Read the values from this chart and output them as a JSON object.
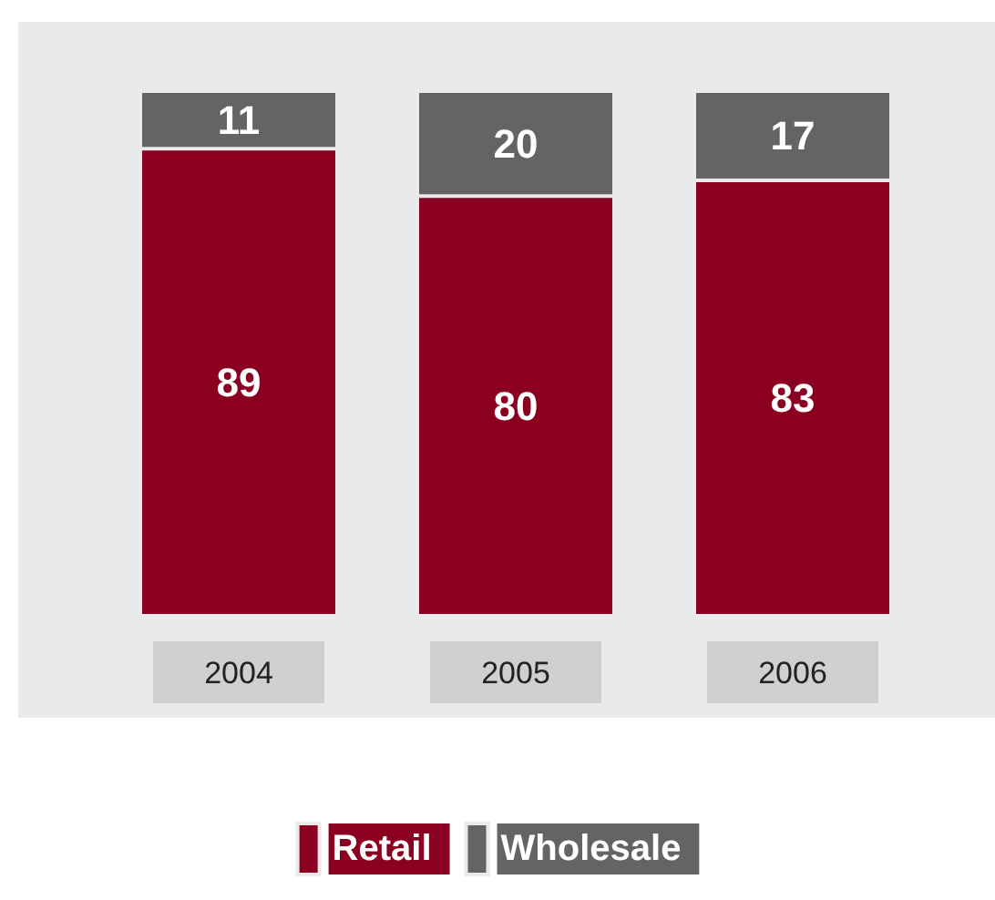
{
  "chart_data": {
    "type": "bar",
    "stacked": true,
    "categories": [
      "2004",
      "2005",
      "2006"
    ],
    "series": [
      {
        "name": "Retail",
        "color": "#8b0021",
        "values": [
          89,
          80,
          83
        ]
      },
      {
        "name": "Wholesale",
        "color": "#636466",
        "values": [
          11,
          20,
          17
        ]
      }
    ],
    "data_labels": true,
    "legend": "bottom"
  }
}
